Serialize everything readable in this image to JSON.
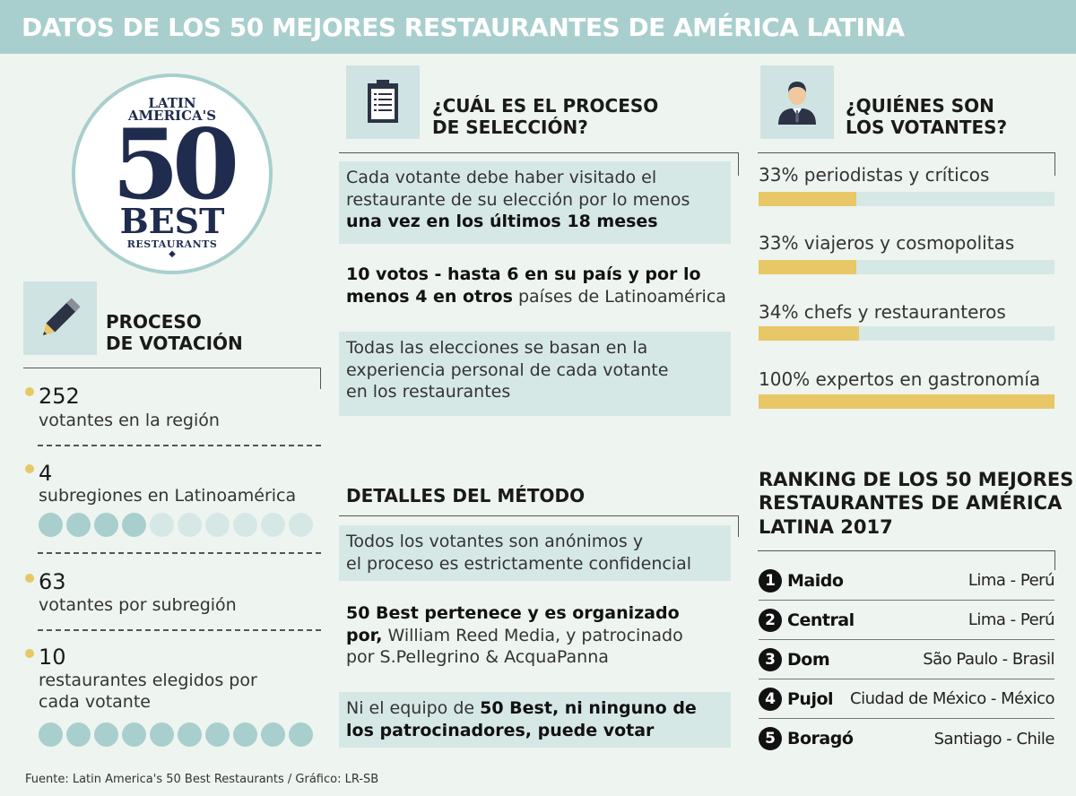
{
  "title": "DATOS DE LOS 50 MEJORES RESTAURANTES DE AMÉRICA LATINA",
  "logo": {
    "line1": "LATIN",
    "line2": "AMERICA'S",
    "line3": "50",
    "line4": "BEST",
    "line5": "RESTAURANTS",
    "line6": "◆"
  },
  "voting": {
    "title_line1": "PROCESO",
    "title_line2": "DE VOTACIÓN",
    "items": [
      {
        "number": "252",
        "desc": "votantes en la región"
      },
      {
        "number": "4",
        "desc": "subregiones en Latinoamérica",
        "circles_filled": 4,
        "circles_total": 10
      },
      {
        "number": "63",
        "desc": "votantes por subregión"
      },
      {
        "number": "10",
        "desc_line1": "restaurantes elegidos por",
        "desc_line2": "cada votante",
        "circles_filled": 10,
        "circles_total": 10
      }
    ]
  },
  "selection": {
    "title_line1": "¿CUÁL ES EL PROCESO",
    "title_line2": "DE SELECCIÓN?",
    "box1": {
      "l1": "Cada votante debe haber visitado el",
      "l2": "restaurante de su elección por lo menos",
      "l3": "una vez en los últimos 18 meses"
    },
    "text2": {
      "b1": "10 votos - hasta 6 en su país y por lo",
      "b2": "menos 4 en otros",
      "t2": " países de Latinoamérica"
    },
    "box3": {
      "l1": "Todas las elecciones se basan en la",
      "l2": "experiencia personal de cada votante",
      "l3": "en los restaurantes"
    }
  },
  "method": {
    "title": "DETALLES DEL MÉTODO",
    "box1": {
      "l1": "Todos los votantes son anónimos y",
      "l2": "el proceso es estrictamente confidencial"
    },
    "text2": {
      "b1": "50 Best pertenece y es organizado",
      "b2": "por,",
      "t2": " William Reed Media, y patrocinado",
      "l3": "por S.Pellegrino & AcquaPanna"
    },
    "box3": {
      "t1": "Ni el equipo de ",
      "b1": "50 Best, ni ninguno de",
      "b2": "los patrocinadores, puede votar"
    }
  },
  "voters": {
    "title_line1": "¿QUIÉNES SON",
    "title_line2": "LOS VOTANTES?",
    "groups": [
      {
        "label": "33% periodistas y críticos",
        "percent": 33
      },
      {
        "label": "33% viajeros y cosmopolitas",
        "percent": 33
      },
      {
        "label": "34% chefs y restauranteros",
        "percent": 34
      },
      {
        "label": "100% expertos en gastronomía",
        "percent": 100
      }
    ]
  },
  "ranking": {
    "title_line1": "RANKING DE LOS 50 MEJORES",
    "title_line2": "RESTAURANTES DE AMÉRICA",
    "title_line3": "LATINA 2017",
    "rows": [
      {
        "rank": "1",
        "name": "Maido",
        "location": "Lima - Perú"
      },
      {
        "rank": "2",
        "name": "Central",
        "location": "Lima - Perú"
      },
      {
        "rank": "3",
        "name": "Dom",
        "location": "São Paulo - Brasil"
      },
      {
        "rank": "4",
        "name": "Pujol",
        "location": "Ciudad de México - México"
      },
      {
        "rank": "5",
        "name": "Boragó",
        "location": "Santiago - Chile"
      }
    ]
  },
  "source": "Fuente:  Latin America's 50 Best Restaurants / Gráfico: LR-SB",
  "colors": {
    "header": "#a8cfcd",
    "accent": "#e8c766",
    "box": "#d6e8e6",
    "background": "#eef4ef"
  }
}
